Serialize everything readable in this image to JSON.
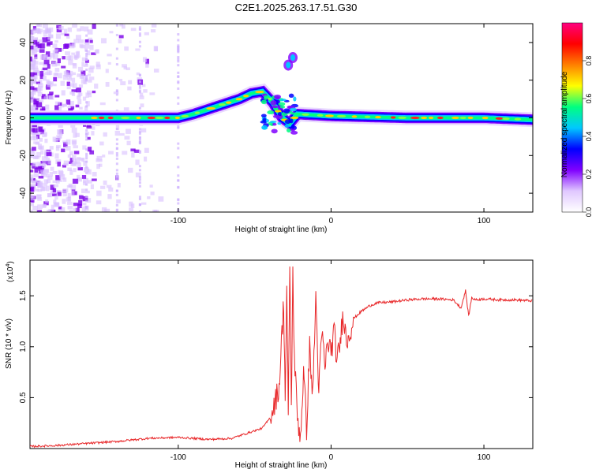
{
  "title": "C2E1.2025.263.17.51.G30",
  "colors": {
    "snr_line": "#e8282a",
    "spec_bg": "#ffffff",
    "axis": "#000000"
  },
  "chart_data": [
    {
      "type": "heatmap",
      "name": "spectrogram",
      "xlabel": "Height of straight line (km)",
      "ylabel": "Frequency (Hz)",
      "xlim": [
        -197,
        132
      ],
      "ylim": [
        -50,
        50
      ],
      "xticks": [
        -100,
        0,
        100
      ],
      "yticks": [
        -40,
        -20,
        0,
        20,
        40
      ],
      "colorbar": {
        "label": "Normalized spectral amplitude",
        "range": [
          0.0,
          1.0
        ],
        "ticks": [
          "0.0",
          "0.2",
          "0.4",
          "0.6",
          "0.8"
        ],
        "tick_values": [
          0.0,
          0.2,
          0.4,
          0.6,
          0.8
        ],
        "colors": [
          "#ffffff",
          "#e0c8ff",
          "#8000ff",
          "#0000ff",
          "#00c8ff",
          "#00ff80",
          "#ffff00",
          "#ff8000",
          "#ff0000",
          "#ff0080"
        ]
      },
      "main_band": [
        {
          "x": -197,
          "f": 0
        },
        {
          "x": -100,
          "f": 0
        },
        {
          "x": -90,
          "f": 2
        },
        {
          "x": -75,
          "f": 6
        },
        {
          "x": -60,
          "f": 10
        },
        {
          "x": -52,
          "f": 13
        },
        {
          "x": -45,
          "f": 14
        },
        {
          "x": -38,
          "f": 8
        },
        {
          "x": -32,
          "f": 0
        },
        {
          "x": -27,
          "f": -3
        },
        {
          "x": -22,
          "f": 2
        },
        {
          "x": 0,
          "f": 1
        },
        {
          "x": 50,
          "f": 0
        },
        {
          "x": 100,
          "f": 0
        },
        {
          "x": 132,
          "f": -1
        }
      ],
      "side_feature": [
        {
          "x": -28,
          "f": 28
        },
        {
          "x": -25,
          "f": 32
        }
      ]
    },
    {
      "type": "line",
      "name": "snr",
      "xlabel": "Height of straight line (km)",
      "ylabel": "SNR (10 * v/v)",
      "multiplier": "(x10",
      "multiplier_exp": "4",
      "multiplier_close": ")",
      "xlim": [
        -197,
        132
      ],
      "ylim": [
        0,
        1.85
      ],
      "xticks": [
        -100,
        0,
        100
      ],
      "yticks": [
        0.5,
        1.0,
        1.5
      ],
      "ytick_labels": [
        "0.5",
        "1.0",
        "1.5"
      ],
      "series": [
        {
          "name": "SNR",
          "x": [
            -197,
            -180,
            -160,
            -140,
            -120,
            -100,
            -80,
            -65,
            -55,
            -45,
            -40,
            -37,
            -34,
            -31,
            -30,
            -29,
            -28,
            -27,
            -26,
            -25,
            -24,
            -22,
            -20,
            -18,
            -16,
            -14,
            -12,
            -10,
            -8,
            -6,
            -4,
            -2,
            0,
            2,
            4,
            6,
            8,
            10,
            15,
            20,
            25,
            30,
            40,
            50,
            60,
            70,
            80,
            85,
            88,
            90,
            92,
            95,
            100,
            110,
            120,
            132
          ],
          "y": [
            0.02,
            0.03,
            0.05,
            0.07,
            0.1,
            0.11,
            0.09,
            0.1,
            0.15,
            0.2,
            0.3,
            0.45,
            0.6,
            1.45,
            0.5,
            1.55,
            0.3,
            1.85,
            0.4,
            1.7,
            0.9,
            0.3,
            0.12,
            0.75,
            0.2,
            1.0,
            0.5,
            1.5,
            0.55,
            1.15,
            0.8,
            1.05,
            0.95,
            1.15,
            0.85,
            1.05,
            1.35,
            1.05,
            1.28,
            1.35,
            1.4,
            1.43,
            1.44,
            1.46,
            1.47,
            1.47,
            1.46,
            1.38,
            1.55,
            1.3,
            1.48,
            1.46,
            1.47,
            1.46,
            1.46,
            1.45
          ]
        }
      ]
    }
  ]
}
